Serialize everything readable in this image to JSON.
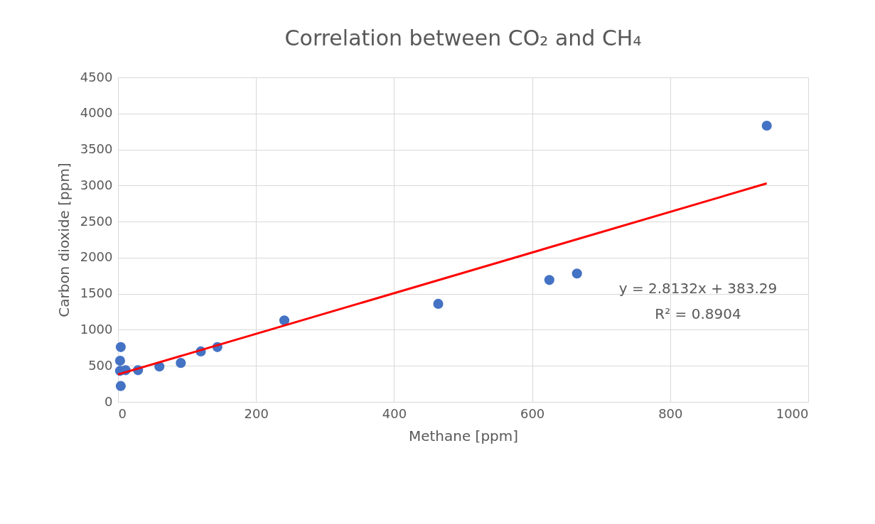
{
  "chart_data": {
    "type": "scatter",
    "title": "Correlation between CO₂ and CH₄",
    "xlabel": "Methane [ppm]",
    "ylabel": "Carbon dioxide [ppm]",
    "series": [
      {
        "color": "#4472c4",
        "x": [
          4,
          3,
          3,
          11,
          29,
          60,
          91,
          120,
          144,
          4,
          241,
          464,
          625,
          665,
          940
        ],
        "values": [
          760,
          570,
          430,
          440,
          440,
          490,
          540,
          700,
          760,
          220,
          1130,
          1360,
          1690,
          1780,
          3830
        ]
      },
      {
        "type": "line",
        "marker": "none",
        "color": "#ff0000",
        "x": [
          0,
          940
        ],
        "values": [
          380,
          3030
        ]
      }
    ],
    "xlim": [
      0,
      1000
    ],
    "xticks": [
      0,
      200,
      400,
      600,
      800,
      1000
    ],
    "ylim": [
      0,
      4500
    ],
    "yticks": [
      0,
      500,
      1000,
      1500,
      2000,
      2500,
      3000,
      3500,
      4000,
      4500
    ],
    "grid": true,
    "marker": "circle",
    "annotations": [
      "y = 2.8132x + 383.29",
      "R² = 0.8904"
    ]
  }
}
